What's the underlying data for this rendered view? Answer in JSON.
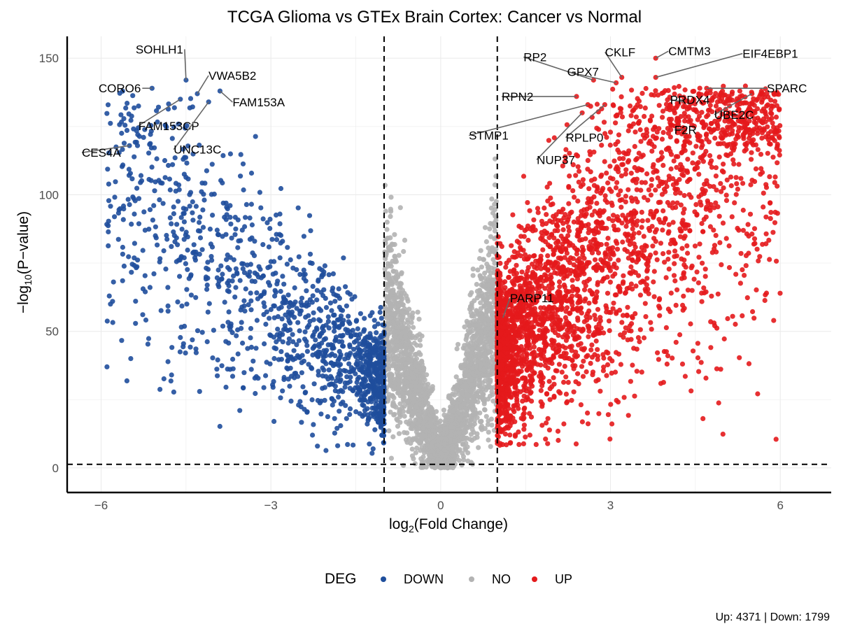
{
  "chart_data": {
    "type": "scatter",
    "title": "TCGA Glioma vs GTEx Brain Cortex: Cancer vs Normal",
    "xlabel": {
      "prefix": "log",
      "sub": "2",
      "suffix": "(Fold Change)"
    },
    "ylabel": {
      "prefix": "−log",
      "sub": "10",
      "suffix": "(P−value)"
    },
    "xlim": [
      -6.6,
      6.9
    ],
    "ylim": [
      -9,
      158
    ],
    "x_ticks": [
      -6,
      -3,
      0,
      3,
      6
    ],
    "x_tick_labels": [
      "−6",
      "−3",
      "0",
      "3",
      "6"
    ],
    "y_ticks": [
      0,
      50,
      100,
      150
    ],
    "y_tick_labels": [
      "0",
      "50",
      "100",
      "150"
    ],
    "thresholds": {
      "log2fc": [
        -1,
        1
      ],
      "neg_log10_p": 1.3
    },
    "grid": true,
    "legend": {
      "title": "DEG",
      "placement": "bottom",
      "entries": [
        {
          "label": "DOWN",
          "color": "#1f4e9c"
        },
        {
          "label": "NO",
          "color": "#b3b3b3"
        },
        {
          "label": "UP",
          "color": "#e41a1c"
        }
      ]
    },
    "series": [
      {
        "name": "DOWN",
        "color": "#1f4e9c",
        "count": 1799,
        "x_range": [
          -6.0,
          -1.0
        ],
        "y_range": [
          5,
          142
        ]
      },
      {
        "name": "NO",
        "color": "#b3b3b3",
        "x_range": [
          -1.0,
          1.0
        ],
        "y_range": [
          0,
          96
        ]
      },
      {
        "name": "UP",
        "color": "#e41a1c",
        "count": 4371,
        "x_range": [
          1.0,
          6.2
        ],
        "y_range": [
          8,
          150
        ]
      }
    ],
    "labeled_genes": [
      {
        "gene": "SOHLH1",
        "x": -4.5,
        "y": 142,
        "group": "DOWN"
      },
      {
        "gene": "VWA5B2",
        "x": -4.3,
        "y": 137,
        "group": "DOWN"
      },
      {
        "gene": "CORO6",
        "x": -5.1,
        "y": 139,
        "group": "DOWN"
      },
      {
        "gene": "FAM153A",
        "x": -3.9,
        "y": 138,
        "group": "DOWN"
      },
      {
        "gene": "FAM153CP",
        "x": -4.6,
        "y": 135,
        "group": "DOWN"
      },
      {
        "gene": "UNC13C",
        "x": -4.1,
        "y": 134,
        "group": "DOWN"
      },
      {
        "gene": "CES4A",
        "x": -5.5,
        "y": 118,
        "group": "DOWN"
      },
      {
        "gene": "RP2",
        "x": 2.7,
        "y": 142,
        "group": "UP"
      },
      {
        "gene": "GPX7",
        "x": 3.1,
        "y": 141,
        "group": "UP"
      },
      {
        "gene": "CKLF",
        "x": 3.2,
        "y": 143,
        "group": "UP"
      },
      {
        "gene": "CMTM3",
        "x": 3.8,
        "y": 150,
        "group": "UP"
      },
      {
        "gene": "EIF4EBP1",
        "x": 3.8,
        "y": 143,
        "group": "UP"
      },
      {
        "gene": "RPN2",
        "x": 2.4,
        "y": 136,
        "group": "UP"
      },
      {
        "gene": "PRDX4",
        "x": 4.3,
        "y": 134,
        "group": "UP"
      },
      {
        "gene": "SPARC",
        "x": 4.7,
        "y": 139,
        "group": "UP"
      },
      {
        "gene": "UBE2C",
        "x": 5.5,
        "y": 137,
        "group": "UP"
      },
      {
        "gene": "STMP1",
        "x": 2.6,
        "y": 133,
        "group": "UP"
      },
      {
        "gene": "RPLP0",
        "x": 2.9,
        "y": 133,
        "group": "UP"
      },
      {
        "gene": "F2R",
        "x": 4.3,
        "y": 124,
        "group": "UP"
      },
      {
        "gene": "NUP37",
        "x": 2.5,
        "y": 130,
        "group": "UP"
      },
      {
        "gene": "PARP11",
        "x": 1.1,
        "y": 55,
        "group": "UP"
      }
    ]
  },
  "legend_title": "DEG",
  "caption": "Up: 4371 | Down: 1799"
}
